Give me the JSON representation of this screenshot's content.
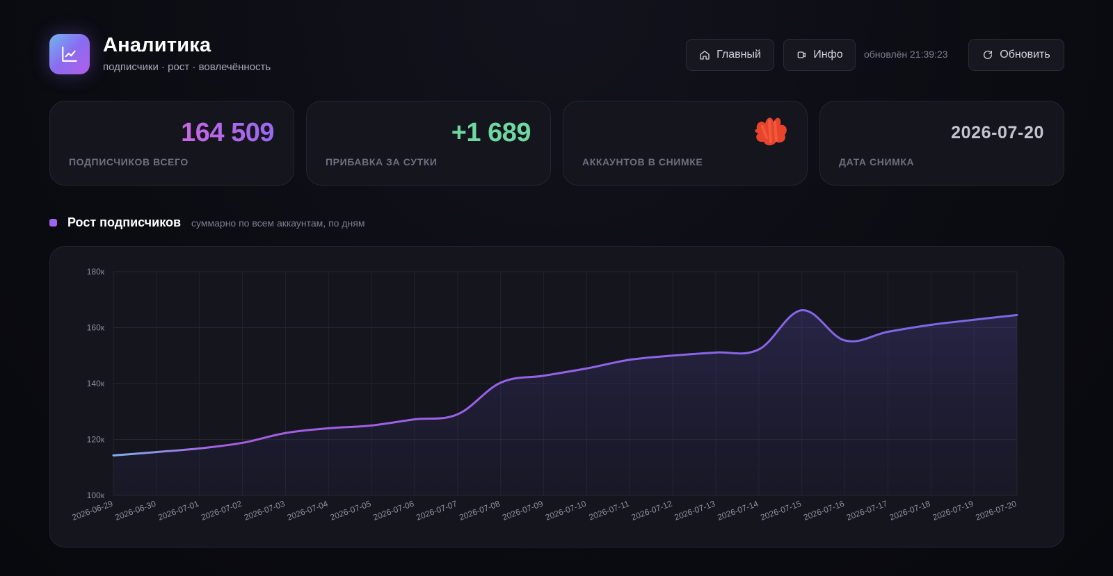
{
  "header": {
    "title": "Аналитика",
    "subtitle": "подписчики · рост · вовлечённость",
    "home_label": "Главный",
    "info_label": "Инфо",
    "updated_text": "обновлён 21:39:23",
    "refresh_label": "Обновить"
  },
  "stats": [
    {
      "value": "164 509",
      "label": "ПОДПИСЧИКОВ ВСЕГО",
      "color": "#b25ee8"
    },
    {
      "value": "+1 689",
      "label": "ПРИБАВКА ЗА СУТКИ",
      "color": "#6fd7a0"
    },
    {
      "value": "",
      "label": "АККАУНТОВ В СНИМКЕ",
      "color": "#e8432c"
    },
    {
      "value": "2026-07-20",
      "label": "ДАТА СНИМКА",
      "color": "#c3c4ce"
    }
  ],
  "section": {
    "title": "Рост подписчиков",
    "description": "суммарно по всем аккаунтам, по дням"
  },
  "colors": {
    "accent": "#8a6cf0",
    "accent_pink": "#b25ee8",
    "accent_blue": "#6fb6f0",
    "positive": "#6fd7a0"
  },
  "chart_data": {
    "type": "area",
    "title": "",
    "xlabel": "",
    "ylabel": "",
    "x": [
      "2026-06-29",
      "2026-06-30",
      "2026-07-01",
      "2026-07-02",
      "2026-07-03",
      "2026-07-04",
      "2026-07-05",
      "2026-07-06",
      "2026-07-07",
      "2026-07-08",
      "2026-07-09",
      "2026-07-10",
      "2026-07-11",
      "2026-07-12",
      "2026-07-13",
      "2026-07-14",
      "2026-07-15",
      "2026-07-16",
      "2026-07-17",
      "2026-07-18",
      "2026-07-19",
      "2026-07-20"
    ],
    "series": [
      {
        "values": [
          114300,
          115500,
          116800,
          118800,
          122300,
          124000,
          125000,
          127200,
          129000,
          140300,
          142800,
          145400,
          148500,
          150000,
          151100,
          152200,
          166200,
          155400,
          158500,
          161000,
          162800,
          164509
        ]
      }
    ],
    "ylim": [
      100000,
      180000
    ],
    "yticks": [
      100000,
      120000,
      140000,
      160000,
      180000
    ],
    "ytick_labels": [
      "100к",
      "120к",
      "140к",
      "160к",
      "180к"
    ],
    "grid": true,
    "legend": "none"
  }
}
